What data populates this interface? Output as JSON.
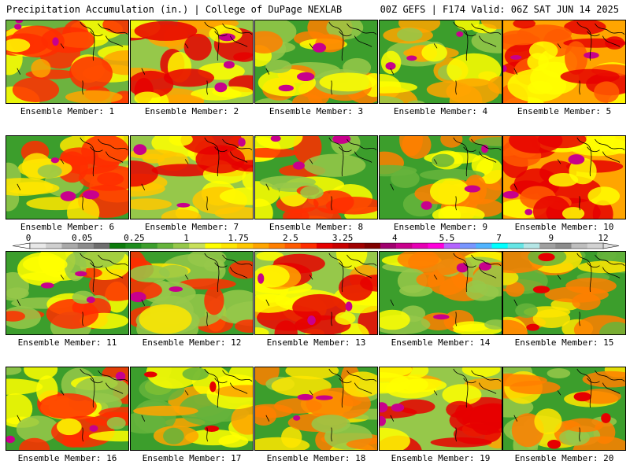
{
  "header": {
    "left": "Precipitation Accumulation (in.) | College of DuPage NEXLAB",
    "right": "00Z GEFS | F174 Valid: 06Z SAT JUN 14 2025"
  },
  "colorbar": {
    "labels": [
      "0",
      "0.05",
      "0.25",
      "1",
      "1.75",
      "2.5",
      "3.25",
      "4",
      "5.5",
      "7",
      "9",
      "12"
    ],
    "colors": [
      "#e8e8e8",
      "#cfcfcf",
      "#a9a9a9",
      "#8c8c8c",
      "#6e6e6e",
      "#0b7a0b",
      "#1e8c1e",
      "#3c9e2c",
      "#66b43c",
      "#96c84a",
      "#c8e05a",
      "#ffff00",
      "#ffe600",
      "#ffc800",
      "#ffa500",
      "#ff7f00",
      "#ff5a00",
      "#ff2d00",
      "#e60000",
      "#c80000",
      "#a00000",
      "#800000",
      "#a0006e",
      "#c8008c",
      "#e600b4",
      "#ff00dc",
      "#b464ff",
      "#7896ff",
      "#50b4ff",
      "#00ffff",
      "#66e6e6",
      "#b4e6e6",
      "#a0a0a0",
      "#8c8c8c",
      "#bebebe",
      "#d2d2d2"
    ]
  },
  "members": [
    {
      "label": "Ensemble Member: 1",
      "palette": [
        "#6db33f",
        "#ffff00",
        "#ffa500",
        "#ff2d00",
        "#c8008c"
      ]
    },
    {
      "label": "Ensemble Member: 2",
      "palette": [
        "#96c84a",
        "#ffff00",
        "#ffa500",
        "#e60000",
        "#c8008c"
      ]
    },
    {
      "label": "Ensemble Member: 3",
      "palette": [
        "#3c9e2c",
        "#96c84a",
        "#ffff00",
        "#ff7f00",
        "#c8008c"
      ]
    },
    {
      "label": "Ensemble Member: 4",
      "palette": [
        "#3c9e2c",
        "#96c84a",
        "#ffff00",
        "#ffa500",
        "#c8008c"
      ]
    },
    {
      "label": "Ensemble Member: 5",
      "palette": [
        "#ffa500",
        "#ffff00",
        "#ff5a00",
        "#e60000",
        "#c8008c"
      ]
    },
    {
      "label": "Ensemble Member: 6",
      "palette": [
        "#3c9e2c",
        "#96c84a",
        "#ffe600",
        "#ff2d00",
        "#c8008c"
      ]
    },
    {
      "label": "Ensemble Member: 7",
      "palette": [
        "#96c84a",
        "#ffff00",
        "#ffc800",
        "#e60000",
        "#c8008c"
      ]
    },
    {
      "label": "Ensemble Member: 8",
      "palette": [
        "#3c9e2c",
        "#96c84a",
        "#ffff00",
        "#ff2d00",
        "#c8008c"
      ]
    },
    {
      "label": "Ensemble Member: 9",
      "palette": [
        "#3c9e2c",
        "#66b43c",
        "#ffff00",
        "#ff7f00",
        "#c8008c"
      ]
    },
    {
      "label": "Ensemble Member: 10",
      "palette": [
        "#ffa500",
        "#ffff00",
        "#ff5a00",
        "#e60000",
        "#c8008c"
      ]
    },
    {
      "label": "Ensemble Member: 11",
      "palette": [
        "#3c9e2c",
        "#96c84a",
        "#ffff00",
        "#ff2d00",
        "#c8008c"
      ]
    },
    {
      "label": "Ensemble Member: 12",
      "palette": [
        "#3c9e2c",
        "#96c84a",
        "#ffe600",
        "#ff2d00",
        "#c8008c"
      ]
    },
    {
      "label": "Ensemble Member: 13",
      "palette": [
        "#96c84a",
        "#ffff00",
        "#ffa500",
        "#e60000",
        "#c8008c"
      ]
    },
    {
      "label": "Ensemble Member: 14",
      "palette": [
        "#3c9e2c",
        "#96c84a",
        "#ffff00",
        "#ff7f00",
        "#c8008c"
      ]
    },
    {
      "label": "Ensemble Member: 15",
      "palette": [
        "#3c9e2c",
        "#66b43c",
        "#ffe600",
        "#ff7f00",
        "#e60000"
      ]
    },
    {
      "label": "Ensemble Member: 16",
      "palette": [
        "#3c9e2c",
        "#96c84a",
        "#ffff00",
        "#ff2d00",
        "#c8008c"
      ]
    },
    {
      "label": "Ensemble Member: 17",
      "palette": [
        "#3c9e2c",
        "#66b43c",
        "#ffff00",
        "#ffa500",
        "#e60000"
      ]
    },
    {
      "label": "Ensemble Member: 18",
      "palette": [
        "#3c9e2c",
        "#96c84a",
        "#ffe600",
        "#ff7f00",
        "#c8008c"
      ]
    },
    {
      "label": "Ensemble Member: 19",
      "palette": [
        "#96c84a",
        "#ffff00",
        "#ffa500",
        "#e60000",
        "#c8008c"
      ]
    },
    {
      "label": "Ensemble Member: 20",
      "palette": [
        "#3c9e2c",
        "#96c84a",
        "#ffe600",
        "#ff7f00",
        "#e60000"
      ]
    }
  ]
}
